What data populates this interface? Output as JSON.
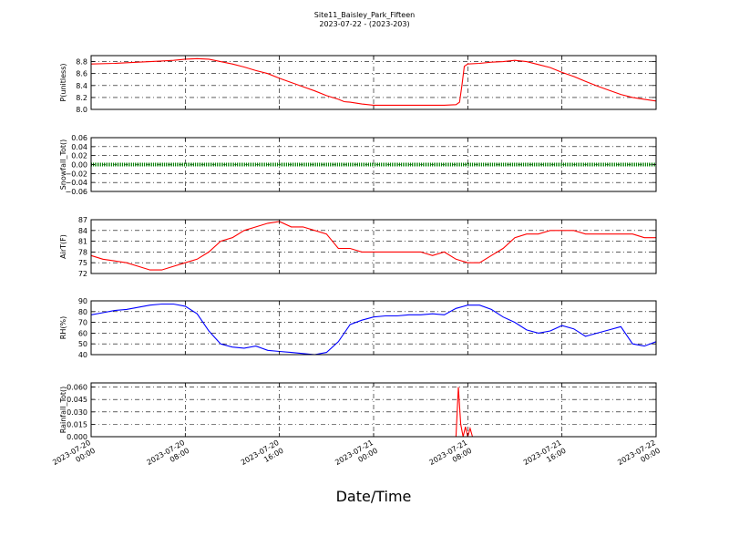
{
  "chart_data": {
    "type": "line",
    "title": "Site11_Baisley_Park_Fifteen",
    "subtitle": "2023-07-22 - (2023-203)",
    "xlabel": "Date/Time",
    "x_ticks": [
      {
        "t": 0,
        "line1": "2023-07-20",
        "line2": "00:00"
      },
      {
        "t": 8,
        "line1": "2023-07-20",
        "line2": "08:00"
      },
      {
        "t": 16,
        "line1": "2023-07-20",
        "line2": "16:00"
      },
      {
        "t": 24,
        "line1": "2023-07-21",
        "line2": "00:00"
      },
      {
        "t": 32,
        "line1": "2023-07-21",
        "line2": "08:00"
      },
      {
        "t": 40,
        "line1": "2023-07-21",
        "line2": "16:00"
      },
      {
        "t": 48,
        "line1": "2023-07-22",
        "line2": "00:00"
      }
    ],
    "xlim": [
      0,
      48
    ],
    "grid": true,
    "panels": [
      {
        "ylabel": "P(unitless)",
        "ylim": [
          8.0,
          8.9
        ],
        "yticks": [
          "8.0",
          "8.2",
          "8.4",
          "8.6",
          "8.8"
        ],
        "ytick_values": [
          8.0,
          8.2,
          8.4,
          8.6,
          8.8
        ],
        "color": "#ff0000",
        "series": {
          "x": [
            0,
            2,
            4,
            6,
            7,
            8,
            9,
            10,
            11,
            12,
            13,
            14,
            15,
            16,
            17,
            18,
            19,
            20,
            21,
            21.5,
            22,
            23,
            24,
            25,
            26,
            28,
            30,
            31,
            31.3,
            31.5,
            31.7,
            32,
            33,
            34,
            35,
            36,
            37,
            38,
            39,
            40,
            41,
            42,
            43,
            44,
            45,
            46,
            47,
            48
          ],
          "y": [
            8.76,
            8.77,
            8.79,
            8.81,
            8.82,
            8.84,
            8.85,
            8.84,
            8.8,
            8.76,
            8.71,
            8.65,
            8.6,
            8.52,
            8.45,
            8.38,
            8.31,
            8.23,
            8.17,
            8.13,
            8.12,
            8.09,
            8.07,
            8.07,
            8.07,
            8.07,
            8.07,
            8.08,
            8.12,
            8.4,
            8.72,
            8.76,
            8.77,
            8.79,
            8.8,
            8.82,
            8.8,
            8.75,
            8.7,
            8.62,
            8.55,
            8.47,
            8.39,
            8.32,
            8.25,
            8.2,
            8.17,
            8.14
          ]
        }
      },
      {
        "ylabel": "Snowfall_Tot()",
        "ylim": [
          -0.06,
          0.06
        ],
        "yticks": [
          "−0.06",
          "−0.04",
          "−0.02",
          "0.00",
          "0.02",
          "0.04",
          "0.06"
        ],
        "ytick_values": [
          -0.06,
          -0.04,
          -0.02,
          0.0,
          0.02,
          0.04,
          0.06
        ],
        "color": "#008000",
        "series": {
          "x": [
            0,
            48
          ],
          "y": [
            0.0,
            0.0
          ]
        }
      },
      {
        "ylabel": "AirT(F)",
        "ylim": [
          72,
          87
        ],
        "yticks": [
          "72",
          "75",
          "78",
          "81",
          "84",
          "87"
        ],
        "ytick_values": [
          72,
          75,
          78,
          81,
          84,
          87
        ],
        "color": "#ff0000",
        "series": {
          "x": [
            0,
            1,
            2,
            3,
            4,
            5,
            6,
            7,
            8,
            9,
            10,
            11,
            12,
            13,
            14,
            15,
            16,
            17,
            18,
            19,
            20,
            21,
            22,
            23,
            24,
            25,
            26,
            27,
            28,
            29,
            30,
            31,
            32,
            33,
            34,
            35,
            36,
            37,
            38,
            39,
            40,
            41,
            42,
            43,
            44,
            45,
            46,
            47,
            48
          ],
          "y": [
            77,
            76,
            75.5,
            75,
            74,
            73,
            73,
            74,
            75,
            76,
            78,
            81,
            82,
            84,
            85,
            86,
            86.5,
            85,
            85,
            84,
            83,
            79,
            79,
            78,
            78,
            78,
            78,
            78,
            78,
            77,
            78,
            76,
            75,
            75,
            77,
            79,
            82,
            83,
            83,
            84,
            84,
            84,
            83,
            83,
            83,
            83,
            83,
            82,
            82
          ]
        }
      },
      {
        "ylabel": "RH(%)",
        "ylim": [
          40,
          90
        ],
        "yticks": [
          "40",
          "50",
          "60",
          "70",
          "80",
          "90"
        ],
        "ytick_values": [
          40,
          50,
          60,
          70,
          80,
          90
        ],
        "color": "#0000ff",
        "series": {
          "x": [
            0,
            1,
            2,
            3,
            4,
            5,
            6,
            7,
            8,
            9,
            10,
            11,
            12,
            13,
            14,
            15,
            16,
            17,
            18,
            19,
            20,
            21,
            22,
            23,
            24,
            25,
            26,
            27,
            28,
            29,
            30,
            31,
            32,
            33,
            34,
            35,
            36,
            37,
            38,
            39,
            40,
            41,
            42,
            43,
            44,
            45,
            46,
            47,
            48
          ],
          "y": [
            77,
            79,
            81,
            82,
            84,
            86,
            87,
            87,
            85,
            78,
            62,
            50,
            47,
            46,
            48,
            44,
            43,
            42,
            41,
            40,
            42,
            52,
            68,
            72,
            75,
            76,
            76,
            77,
            77,
            78,
            77,
            83,
            86,
            86,
            82,
            75,
            70,
            63,
            60,
            62,
            67,
            64,
            57,
            60,
            63,
            66,
            50,
            48,
            52
          ]
        }
      },
      {
        "ylabel": "Rainfall_Tot()",
        "ylim": [
          0,
          0.065
        ],
        "yticks": [
          "0.000",
          "0.015",
          "0.030",
          "0.045",
          "0.060"
        ],
        "ytick_values": [
          0.0,
          0.015,
          0.03,
          0.045,
          0.06
        ],
        "color": "#ff0000",
        "series": {
          "x": [
            0,
            31,
            31.2,
            31.4,
            31.6,
            31.8,
            32,
            32.2,
            32.4,
            48
          ],
          "y": [
            0,
            0,
            0.06,
            0.015,
            0,
            0.012,
            0,
            0.01,
            0,
            0
          ]
        }
      }
    ]
  }
}
